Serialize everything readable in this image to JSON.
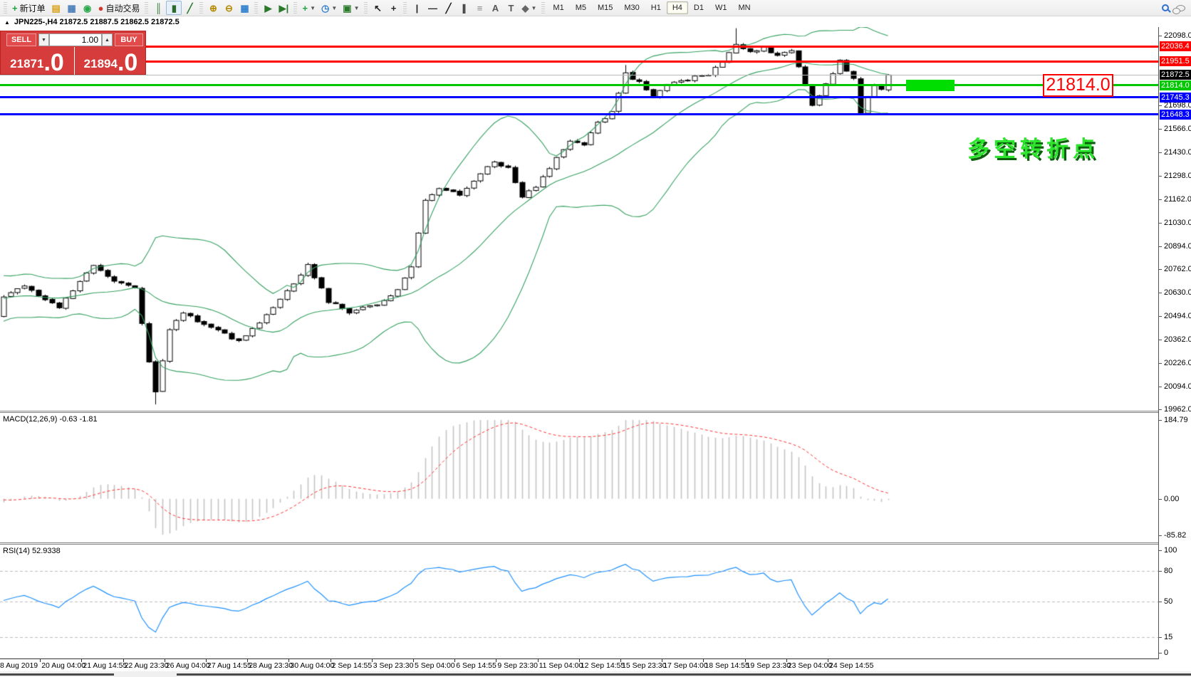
{
  "toolbar": {
    "items": [
      {
        "name": "new-order-button",
        "glyph": "+",
        "color": "#1fa33c",
        "label": "新订单"
      },
      {
        "name": "history-book-icon",
        "glyph": "▤",
        "color": "#d9a21b"
      },
      {
        "name": "chart-window-icon",
        "glyph": "▦",
        "color": "#4a7ebb"
      },
      {
        "name": "signals-icon",
        "glyph": "◉",
        "color": "#2aa84a"
      },
      {
        "name": "autotrade-button",
        "glyph": "●",
        "color": "#d23a2e",
        "label": "自动交易"
      },
      {
        "sep": true
      },
      {
        "name": "bar-chart-icon",
        "glyph": "║",
        "color": "#3a7a3a"
      },
      {
        "name": "candlestick-icon",
        "glyph": "▮",
        "color": "#2a6a2a",
        "active": true
      },
      {
        "name": "line-chart-icon",
        "glyph": "╱",
        "color": "#2a7a2a"
      },
      {
        "sep": true
      },
      {
        "name": "zoom-in-icon",
        "glyph": "⊕",
        "color": "#b58a00"
      },
      {
        "name": "zoom-out-icon",
        "glyph": "⊖",
        "color": "#b58a00"
      },
      {
        "name": "tile-windows-icon",
        "glyph": "▦",
        "color": "#2f7fd0"
      },
      {
        "sep": true
      },
      {
        "name": "auto-scroll-icon",
        "glyph": "▶",
        "color": "#2a7a2a"
      },
      {
        "name": "chart-shift-icon",
        "glyph": "▶|",
        "color": "#2a7a2a"
      },
      {
        "sep": true
      },
      {
        "name": "indicators-icon",
        "glyph": "+",
        "color": "#1fa33c",
        "dd": true
      },
      {
        "name": "periods-icon",
        "glyph": "◷",
        "color": "#2f7fd0",
        "dd": true
      },
      {
        "name": "templates-icon",
        "glyph": "▣",
        "color": "#2a7a2a",
        "dd": true
      },
      {
        "sep": true
      },
      {
        "name": "cursor-icon",
        "glyph": "↖",
        "color": "#222"
      },
      {
        "name": "crosshair-icon",
        "glyph": "+",
        "color": "#222"
      },
      {
        "sep": true
      },
      {
        "name": "vertical-line-icon",
        "glyph": "|",
        "color": "#222"
      },
      {
        "name": "horizontal-line-icon",
        "glyph": "—",
        "color": "#222"
      },
      {
        "name": "trendline-icon",
        "glyph": "╱",
        "color": "#222"
      },
      {
        "name": "channel-icon",
        "glyph": "∥",
        "color": "#222"
      },
      {
        "name": "fibonacci-icon",
        "glyph": "≡",
        "color": "#888"
      },
      {
        "name": "text-icon",
        "glyph": "A",
        "color": "#555"
      },
      {
        "name": "label-icon",
        "glyph": "T",
        "color": "#555"
      },
      {
        "name": "shapes-icon",
        "glyph": "◆",
        "color": "#666",
        "dd": true
      },
      {
        "sep": true
      }
    ],
    "timeframes": [
      "M1",
      "M5",
      "M15",
      "M30",
      "H1",
      "H4",
      "D1",
      "W1",
      "MN"
    ],
    "active_timeframe": "H4"
  },
  "chart_header": {
    "title": "JPN225-,H4  21872.5 21887.5 21862.5 21872.5"
  },
  "trade_panel": {
    "sell_label": "SELL",
    "buy_label": "BUY",
    "volume": "1.00",
    "sell_price_main": "21871",
    "sell_price_pip": ".0",
    "buy_price_main": "21894",
    "buy_price_pip": ".0"
  },
  "annotations": {
    "price_box": "21814.0",
    "turning_point_text": "多空转折点"
  },
  "panels": {
    "macd_label": "MACD(12,26,9) -0.63 -1.81",
    "rsi_label": "RSI(14) 52.9338"
  },
  "colors": {
    "up_candle": "#ffffff",
    "down_candle": "#000000",
    "candle_border": "#000000",
    "bollinger": "#35a060",
    "macd_hist": "#c4c4c4",
    "macd_signal": "#ff3030",
    "rsi_line": "#1e90ff",
    "resistance": "#ff0000",
    "pivot": "#00c800",
    "support": "#0000ff",
    "current_price_line": "#b9b9b9",
    "current_badge": "#000000",
    "panel_red": "#d63c3c",
    "zone_green": "#00dd00"
  },
  "chart_data": {
    "type": "candlestick",
    "symbol": "JPN225-",
    "period": "H4",
    "ohlc_current": {
      "open": 21872.5,
      "high": 21887.5,
      "low": 21862.5,
      "close": 21872.5
    },
    "main": {
      "price_anchor_top": 22098,
      "price_anchor_bottom": 19962,
      "axis_ticks": [
        "22098.0",
        "21698.0",
        "21566.0",
        "21430.0",
        "21298.0",
        "21162.0",
        "21030.0",
        "20894.0",
        "20762.0",
        "20630.0",
        "20494.0",
        "20362.0",
        "20226.0",
        "20094.0",
        "19962.0"
      ],
      "hlines": [
        {
          "price": 22036.4,
          "label": "22036.4",
          "color": "#ff0000",
          "kind": "resistance"
        },
        {
          "price": 21951.5,
          "label": "21951.5",
          "color": "#ff0000",
          "kind": "resistance"
        },
        {
          "price": 21814.0,
          "label": "21814.0",
          "color": "#00c800",
          "kind": "pivot"
        },
        {
          "price": 21745.3,
          "label": "21745.3",
          "color": "#0000ff",
          "kind": "support"
        },
        {
          "price": 21648.3,
          "label": "21648.3",
          "color": "#0000ff",
          "kind": "support"
        }
      ],
      "current_price": 21872.5,
      "current_price_label": "21872.5",
      "keyframes": [
        [
          0,
          20610
        ],
        [
          3,
          20665
        ],
        [
          8,
          20550
        ],
        [
          13,
          20780
        ],
        [
          16,
          20700
        ],
        [
          19,
          20650
        ],
        [
          21,
          20240
        ],
        [
          22,
          20060
        ],
        [
          24,
          20420
        ],
        [
          26,
          20510
        ],
        [
          30,
          20430
        ],
        [
          34,
          20350
        ],
        [
          38,
          20500
        ],
        [
          42,
          20680
        ],
        [
          44,
          20790
        ],
        [
          47,
          20580
        ],
        [
          50,
          20520
        ],
        [
          54,
          20560
        ],
        [
          57,
          20640
        ],
        [
          59,
          20780
        ],
        [
          61,
          21150
        ],
        [
          63,
          21220
        ],
        [
          66,
          21190
        ],
        [
          69,
          21310
        ],
        [
          71,
          21380
        ],
        [
          73,
          21340
        ],
        [
          75,
          21180
        ],
        [
          77,
          21230
        ],
        [
          80,
          21400
        ],
        [
          82,
          21500
        ],
        [
          84,
          21480
        ],
        [
          86,
          21600
        ],
        [
          88,
          21660
        ],
        [
          90,
          21880
        ],
        [
          92,
          21830
        ],
        [
          94,
          21740
        ],
        [
          96,
          21820
        ],
        [
          99,
          21850
        ],
        [
          102,
          21880
        ],
        [
          104,
          21950
        ],
        [
          106,
          22040
        ],
        [
          108,
          22000
        ],
        [
          110,
          22030
        ],
        [
          112,
          21980
        ],
        [
          114,
          22010
        ],
        [
          116,
          21820
        ],
        [
          117,
          21700
        ],
        [
          119,
          21820
        ],
        [
          121,
          21950
        ],
        [
          123,
          21850
        ],
        [
          124,
          21650
        ],
        [
          125,
          21750
        ],
        [
          126,
          21820
        ],
        [
          127,
          21790
        ],
        [
          128,
          21872.5
        ]
      ],
      "wick_overrides": [
        [
          22,
          "low",
          19990
        ],
        [
          106,
          "high",
          22140
        ],
        [
          90,
          "high",
          21930
        ]
      ],
      "bollinger": {
        "period": 20,
        "deviation": 2
      }
    },
    "macd": {
      "params": [
        12,
        26,
        9
      ],
      "value": -0.63,
      "signal": -1.81,
      "scale_ticks": [
        "184.79",
        "0.00",
        "-85.82"
      ],
      "scale_values": [
        184.79,
        0,
        -85.82
      ]
    },
    "rsi": {
      "period": 14,
      "value": 52.9338,
      "scale_ticks": [
        "100",
        "80",
        "50",
        "15",
        "0"
      ],
      "scale_values": [
        100,
        80,
        50,
        15,
        0
      ],
      "level_lines": [
        80,
        50,
        15
      ]
    },
    "time_axis": {
      "labels": [
        "8 Aug 2019",
        "20 Aug 04:00",
        "21 Aug 14:55",
        "22 Aug 23:30",
        "26 Aug 04:00",
        "27 Aug 14:55",
        "28 Aug 23:30",
        "30 Aug 04:00",
        "2 Sep 14:55",
        "3 Sep 23:30",
        "5 Sep 04:00",
        "6 Sep 14:55",
        "9 Sep 23:30",
        "11 Sep 04:00",
        "12 Sep 14:55",
        "15 Sep 23:30",
        "17 Sep 04:00",
        "18 Sep 14:55",
        "19 Sep 23:30",
        "23 Sep 04:00",
        "24 Sep 14:55"
      ]
    }
  }
}
